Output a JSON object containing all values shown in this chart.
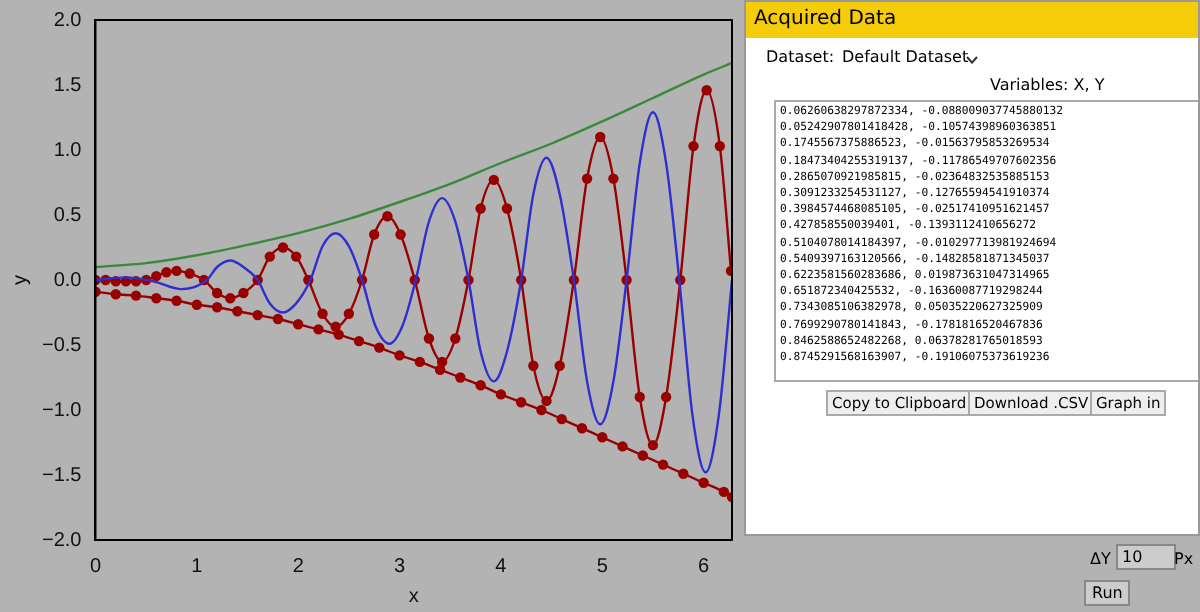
{
  "chart_data": [
    {
      "type": "line",
      "xlabel": "x",
      "ylabel": "y",
      "xlim": [
        0,
        6.28
      ],
      "ylim": [
        -2,
        2
      ],
      "xticks": [
        0,
        1,
        2,
        3,
        4,
        5,
        6
      ],
      "yticks": [
        {
          "value": -2,
          "label": "−2.0"
        },
        {
          "value": -1.5,
          "label": "−1.5"
        },
        {
          "value": -1,
          "label": "−1.0"
        },
        {
          "value": -0.5,
          "label": "−0.5"
        },
        {
          "value": 0,
          "label": "0.0"
        },
        {
          "value": 0.5,
          "label": "0.5"
        },
        {
          "value": 1,
          "label": "1.0"
        },
        {
          "value": 1.5,
          "label": "1.5"
        },
        {
          "value": 2,
          "label": "2.0"
        }
      ],
      "grid": false,
      "legend": false,
      "series": [
        {
          "type": "line",
          "color": "#3a8a3a",
          "marker": "none",
          "x": [
            0,
            0.5,
            1,
            1.5,
            2,
            2.5,
            3,
            3.5,
            4,
            4.5,
            5,
            5.5,
            6,
            6.28
          ],
          "values": [
            0.1,
            0.13,
            0.19,
            0.27,
            0.36,
            0.47,
            0.6,
            0.74,
            0.9,
            1.05,
            1.22,
            1.4,
            1.58,
            1.67
          ]
        },
        {
          "type": "line",
          "color": "#2f2fd0",
          "marker": "none",
          "x": [
            0,
            0.3,
            0.57,
            0.85,
            1.1,
            1.2,
            1.33,
            1.46,
            1.6,
            1.72,
            1.85,
            1.98,
            2.12,
            2.24,
            2.37,
            2.5,
            2.63,
            2.76,
            2.9,
            3.03,
            3.16,
            3.29,
            3.42,
            3.55,
            3.68,
            3.8,
            3.93,
            4.06,
            4.2,
            4.32,
            4.45,
            4.58,
            4.72,
            4.85,
            4.98,
            5.11,
            5.24,
            5.37,
            5.5,
            5.63,
            5.76,
            5.89,
            6.02,
            6.15,
            6.28
          ],
          "values": [
            0,
            0.02,
            -0.01,
            -0.07,
            0,
            0.1,
            0.15,
            0.1,
            0,
            -0.18,
            -0.25,
            -0.18,
            0,
            0.26,
            0.36,
            0.26,
            0,
            -0.35,
            -0.49,
            -0.35,
            0,
            0.45,
            0.63,
            0.45,
            0,
            -0.55,
            -0.78,
            -0.55,
            0,
            0.66,
            0.94,
            0.66,
            0,
            -0.78,
            -1.11,
            -0.78,
            0,
            0.9,
            1.29,
            0.9,
            0,
            -1.04,
            -1.48,
            -1.04,
            0
          ]
        },
        {
          "type": "line",
          "color": "#990000",
          "marker": "circle",
          "x": [
            0,
            0.1,
            0.2,
            0.3,
            0.4,
            0.5,
            0.6,
            0.7,
            0.8,
            0.93,
            1.07,
            1.2,
            1.33,
            1.46,
            1.6,
            1.72,
            1.85,
            1.98,
            2.1,
            2.24,
            2.37,
            2.5,
            2.63,
            2.75,
            2.88,
            3.01,
            3.15,
            3.29,
            3.42,
            3.55,
            3.68,
            3.8,
            3.93,
            4.06,
            4.2,
            4.32,
            4.45,
            4.58,
            4.72,
            4.85,
            4.98,
            5.11,
            5.24,
            5.37,
            5.5,
            5.63,
            5.77,
            5.9,
            6.03,
            6.16,
            6.27
          ],
          "values": [
            0,
            0,
            -0.01,
            -0.01,
            -0.01,
            0,
            0.03,
            0.06,
            0.07,
            0.05,
            0,
            -0.1,
            -0.14,
            -0.1,
            0,
            0.18,
            0.25,
            0.18,
            0,
            -0.26,
            -0.36,
            -0.26,
            0,
            0.35,
            0.49,
            0.35,
            0,
            -0.45,
            -0.63,
            -0.45,
            0,
            0.55,
            0.77,
            0.55,
            0,
            -0.66,
            -0.93,
            -0.66,
            0,
            0.78,
            1.1,
            0.78,
            0,
            -0.9,
            -1.27,
            -0.9,
            0,
            1.03,
            1.46,
            1.03,
            0.07
          ]
        },
        {
          "type": "line",
          "color": "#990000",
          "marker": "circle",
          "x": [
            0,
            0.2,
            0.4,
            0.6,
            0.8,
            1,
            1.2,
            1.4,
            1.6,
            1.8,
            2,
            2.2,
            2.4,
            2.6,
            2.8,
            3,
            3.2,
            3.4,
            3.6,
            3.8,
            4,
            4.2,
            4.4,
            4.6,
            4.8,
            5,
            5.2,
            5.4,
            5.6,
            5.8,
            6,
            6.2,
            6.28
          ],
          "values": [
            -0.09,
            -0.11,
            -0.12,
            -0.14,
            -0.16,
            -0.19,
            -0.21,
            -0.24,
            -0.27,
            -0.3,
            -0.34,
            -0.38,
            -0.42,
            -0.47,
            -0.52,
            -0.58,
            -0.63,
            -0.69,
            -0.75,
            -0.81,
            -0.88,
            -0.94,
            -1,
            -1.07,
            -1.14,
            -1.21,
            -1.28,
            -1.35,
            -1.42,
            -1.49,
            -1.56,
            -1.63,
            -1.67
          ]
        }
      ]
    },
    {
      "type": "other",
      "title": "Acquired Data",
      "annotations": [
        "Dataset:",
        "Default Dataset",
        "Variables: X, Y",
        "0.06260638297872334, -0.088009037745880132",
        "0.05242907801418428, -0.10574398960363851",
        "0.1745567375886523, -0.01563795853269534",
        "0.18473404255319137, -0.11786549707602356",
        "0.2865070921985815, -0.02364832535885153",
        "0.3091233254531127, -0.12765594541910374",
        "0.3984574468085105, -0.02517410951621457",
        "0.427858550039401, -0.1393112410656272",
        "0.5104078014184397, -0.010297713981924694",
        "0.5409397163120566, -0.14828581871345037",
        "0.6223581560283686, 0.019873631047314965",
        "0.651872340425532, -0.16360087719298244",
        "0.7343085106382978, 0.05035220627325909",
        "0.7699290780141843, -0.1781816520467836",
        "0.8462588652482268, 0.06378281765018593",
        "0.8745291568163907, -0.19106075373619236",
        "Copy to Clipboard",
        "Download .CSV",
        "Graph in",
        "ΔY",
        "10",
        "Px",
        "Run"
      ]
    }
  ]
}
